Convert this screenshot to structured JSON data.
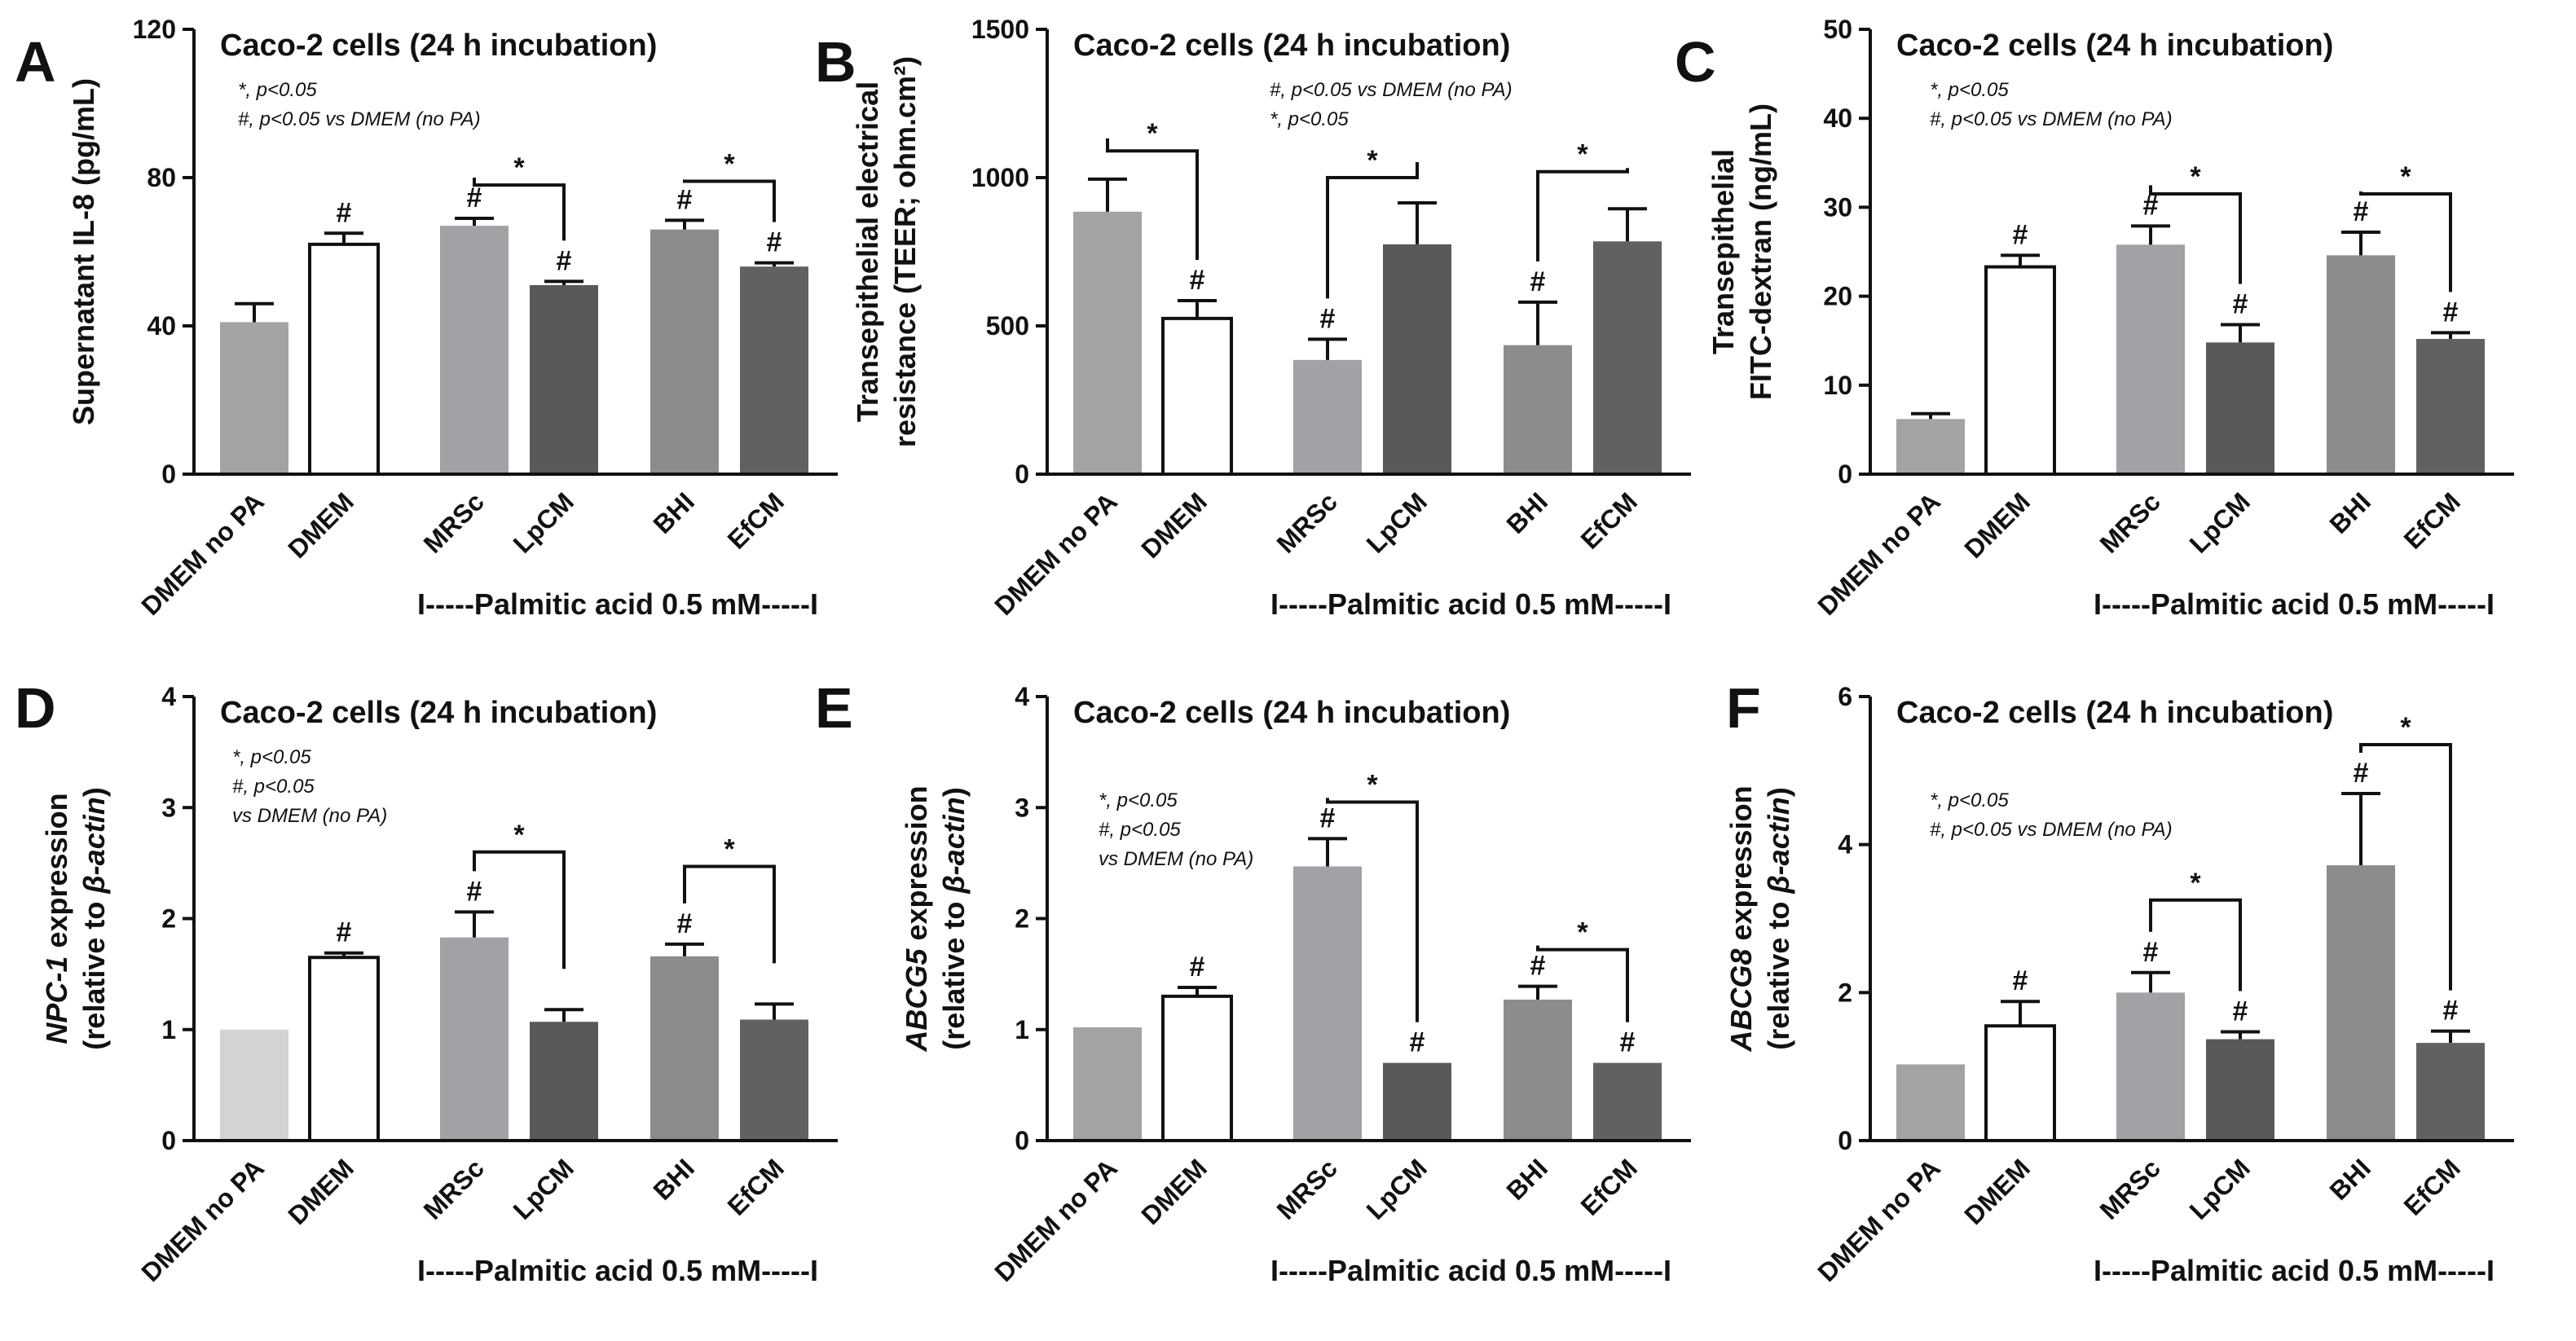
{
  "chart_data": [
    {
      "type": "bar",
      "panel": "A",
      "title": "Caco-2 cells (24 h incubation)",
      "ylabel_lines": [
        [
          {
            "text": "Supernatant IL-8 (pg/mL)",
            "italic": false
          }
        ]
      ],
      "yticks": [
        0,
        40,
        80,
        120
      ],
      "ylim": [
        0,
        120
      ],
      "categories": [
        "DMEM no PA",
        "DMEM",
        "MRSc",
        "LpCM",
        "BHI",
        "EfCM"
      ],
      "values": [
        41,
        62,
        67,
        51,
        66,
        56
      ],
      "errors": [
        5,
        3,
        2,
        1,
        2.5,
        1
      ],
      "colors": [
        "#a3a3a5",
        "#ffffff",
        "#a1a1a6",
        "#59595b",
        "#8c8c8e",
        "#616163"
      ],
      "hash": [
        false,
        true,
        true,
        true,
        true,
        true
      ],
      "brackets": [
        [
          2,
          3,
          78
        ],
        [
          4,
          5,
          79
        ]
      ],
      "notes": [
        "*, p<0.05",
        "#, p<0.05 vs DMEM (no PA)"
      ],
      "group_label": "I-----Palmitic acid 0.5 mM-----I"
    },
    {
      "type": "bar",
      "panel": "B",
      "title": "Caco-2 cells (24 h incubation)",
      "ylabel_lines": [
        [
          {
            "text": "Transepithelial electrical",
            "italic": false
          }
        ],
        [
          {
            "text": "resistance (TEER; ohm.cm²)",
            "italic": false
          }
        ]
      ],
      "yticks": [
        0,
        500,
        1000,
        1500
      ],
      "ylim": [
        0,
        1500
      ],
      "categories": [
        "DMEM no PA",
        "DMEM",
        "MRSc",
        "LpCM",
        "BHI",
        "EfCM"
      ],
      "values": [
        885,
        525,
        385,
        775,
        435,
        785
      ],
      "errors": [
        110,
        60,
        70,
        140,
        145,
        110
      ],
      "colors": [
        "#a3a3a5",
        "#ffffff",
        "#a1a1a6",
        "#59595b",
        "#8c8c8e",
        "#616163"
      ],
      "hash": [
        false,
        true,
        true,
        false,
        true,
        false
      ],
      "brackets": [
        [
          0,
          1,
          1090
        ],
        [
          2,
          3,
          1000
        ],
        [
          4,
          5,
          1020
        ]
      ],
      "notes": [
        "#, p<0.05 vs DMEM (no PA)",
        "*, p<0.05"
      ],
      "group_label": "I-----Palmitic acid 0.5 mM-----I"
    },
    {
      "type": "bar",
      "panel": "C",
      "title": "Caco-2 cells (24 h incubation)",
      "ylabel_lines": [
        [
          {
            "text": "Transepithelial",
            "italic": false
          }
        ],
        [
          {
            "text": "FITC-dextran (ng/mL)",
            "italic": false
          }
        ]
      ],
      "yticks": [
        0,
        10,
        20,
        30,
        40,
        50
      ],
      "ylim": [
        0,
        50
      ],
      "categories": [
        "DMEM no PA",
        "DMEM",
        "MRSc",
        "LpCM",
        "BHI",
        "EfCM"
      ],
      "values": [
        6.2,
        23.3,
        25.8,
        14.8,
        24.6,
        15.2
      ],
      "errors": [
        0.6,
        1.3,
        2.1,
        2.0,
        2.6,
        0.7
      ],
      "colors": [
        "#a3a3a5",
        "#ffffff",
        "#a1a1a6",
        "#59595b",
        "#8c8c8e",
        "#616163"
      ],
      "hash": [
        false,
        true,
        true,
        true,
        true,
        true
      ],
      "brackets": [
        [
          2,
          3,
          31.5
        ],
        [
          4,
          5,
          31.5
        ]
      ],
      "notes": [
        "*, p<0.05",
        "#, p<0.05 vs DMEM (no PA)"
      ],
      "group_label": "I-----Palmitic acid 0.5 mM-----I"
    },
    {
      "type": "bar",
      "panel": "D",
      "title": "Caco-2 cells (24 h incubation)",
      "ylabel_lines": [
        [
          {
            "text": "NPC-1",
            "italic": true
          },
          {
            "text": " expression",
            "italic": false
          }
        ],
        [
          {
            "text": "(relative to ",
            "italic": false
          },
          {
            "text": "β-actin",
            "italic": true
          },
          {
            "text": ")",
            "italic": false
          }
        ]
      ],
      "yticks": [
        0,
        1,
        2,
        3,
        4
      ],
      "ylim": [
        0,
        4
      ],
      "categories": [
        "DMEM no PA",
        "DMEM",
        "MRSc",
        "LpCM",
        "BHI",
        "EfCM"
      ],
      "values": [
        1.0,
        1.65,
        1.83,
        1.07,
        1.66,
        1.09
      ],
      "errors": [
        0,
        0.04,
        0.23,
        0.11,
        0.11,
        0.14
      ],
      "colors": [
        "#d3d3d3",
        "#ffffff",
        "#a1a1a6",
        "#59595b",
        "#8c8c8e",
        "#616163"
      ],
      "hash": [
        false,
        true,
        true,
        false,
        true,
        false
      ],
      "brackets": [
        [
          2,
          3,
          2.6
        ],
        [
          4,
          5,
          2.47
        ]
      ],
      "notes": [
        "*, p<0.05",
        "#, p<0.05",
        " vs DMEM (no PA)"
      ],
      "group_label": "I-----Palmitic acid 0.5 mM-----I"
    },
    {
      "type": "bar",
      "panel": "E",
      "title": "Caco-2 cells (24 h incubation)",
      "ylabel_lines": [
        [
          {
            "text": "ABCG5",
            "italic": true
          },
          {
            "text": " expression",
            "italic": false
          }
        ],
        [
          {
            "text": "(relative to ",
            "italic": false
          },
          {
            "text": "β-actin",
            "italic": true
          },
          {
            "text": ")",
            "italic": false
          }
        ]
      ],
      "yticks": [
        0,
        1,
        2,
        3,
        4
      ],
      "ylim": [
        0,
        4
      ],
      "categories": [
        "DMEM no PA",
        "DMEM",
        "MRSc",
        "LpCM",
        "BHI",
        "EfCM"
      ],
      "values": [
        1.02,
        1.3,
        2.47,
        0.7,
        1.27,
        0.7
      ],
      "errors": [
        0,
        0.08,
        0.25,
        0,
        0.12,
        0
      ],
      "colors": [
        "#a3a3a5",
        "#ffffff",
        "#a1a1a6",
        "#59595b",
        "#8c8c8e",
        "#616163"
      ],
      "hash": [
        false,
        true,
        true,
        true,
        true,
        true
      ],
      "brackets": [
        [
          2,
          3,
          3.05
        ],
        [
          4,
          5,
          1.72
        ]
      ],
      "notes": [
        "*, p<0.05",
        "#, p<0.05",
        " vs DMEM (no PA)"
      ],
      "group_label": "I-----Palmitic acid 0.5 mM-----I"
    },
    {
      "type": "bar",
      "panel": "F",
      "title": "Caco-2 cells (24 h incubation)",
      "ylabel_lines": [
        [
          {
            "text": "ABCG8",
            "italic": true
          },
          {
            "text": " expression",
            "italic": false
          }
        ],
        [
          {
            "text": "(relative to ",
            "italic": false
          },
          {
            "text": "β-actin",
            "italic": true
          },
          {
            "text": ")",
            "italic": false
          }
        ]
      ],
      "yticks": [
        0,
        2,
        4,
        6
      ],
      "ylim": [
        0,
        6
      ],
      "categories": [
        "DMEM no PA",
        "DMEM",
        "MRSc",
        "LpCM",
        "BHI",
        "EfCM"
      ],
      "values": [
        1.03,
        1.55,
        2.0,
        1.37,
        3.72,
        1.32
      ],
      "errors": [
        0,
        0.33,
        0.27,
        0.1,
        0.97,
        0.16
      ],
      "colors": [
        "#a3a3a5",
        "#ffffff",
        "#a1a1a6",
        "#59595b",
        "#8c8c8e",
        "#616163"
      ],
      "hash": [
        false,
        true,
        true,
        true,
        true,
        true
      ],
      "brackets": [
        [
          2,
          3,
          3.25
        ],
        [
          4,
          5,
          5.35
        ]
      ],
      "notes": [
        "*, p<0.05",
        "#, p<0.05 vs DMEM (no PA)"
      ],
      "group_label": "I-----Palmitic acid 0.5 mM-----I"
    }
  ]
}
